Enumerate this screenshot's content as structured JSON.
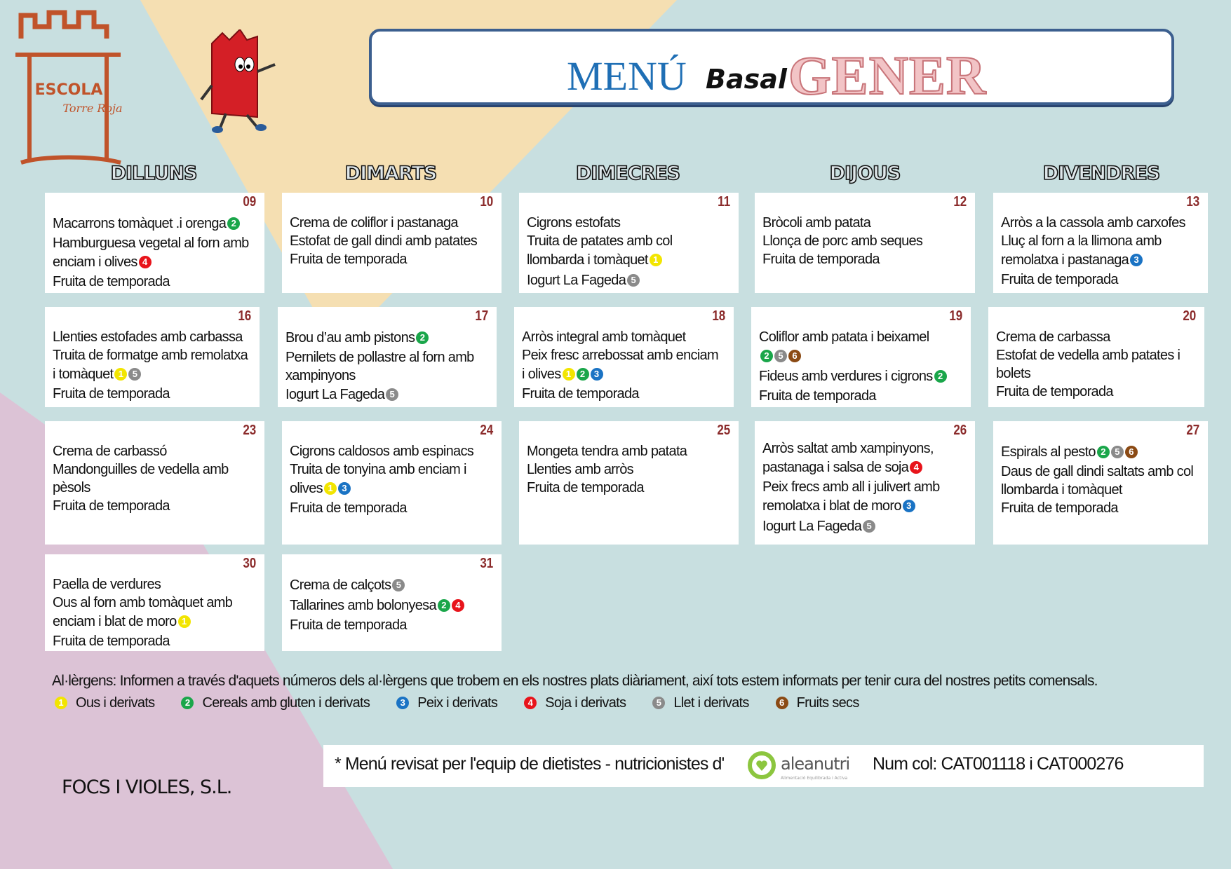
{
  "logo": {
    "school": "ESCOLA",
    "subtitle": "Torre Roja"
  },
  "title": {
    "menu": "MENÚ",
    "type": "Basal",
    "month": "GENER"
  },
  "colors": {
    "allergen": {
      "1": "#f2e500",
      "2": "#1aa64a",
      "3": "#1a73c4",
      "4": "#e8141b",
      "5": "#8a8a8a",
      "6": "#8b4a14"
    }
  },
  "weekdays": [
    "DILLUNS",
    "DIMARTS",
    "DIMECRES",
    "DIJOUS",
    "DIVENDRES"
  ],
  "weeks": [
    [
      {
        "day": "09",
        "lines": [
          {
            "text": "Macarrons tomàquet .i orenga",
            "allergens": [
              2
            ]
          },
          {
            "text": "Hamburguesa vegetal al forn  amb",
            "allergens": []
          },
          {
            "text": "enciam i olives",
            "allergens": [
              4
            ]
          },
          {
            "text": "Fruita de temporada",
            "allergens": []
          }
        ]
      },
      {
        "day": "10",
        "lines": [
          {
            "text": "Crema de coliflor i pastanaga",
            "allergens": []
          },
          {
            "text": "Estofat de gall dindi amb patates",
            "allergens": []
          },
          {
            "text": "Fruita de temporada",
            "allergens": []
          }
        ]
      },
      {
        "day": "11",
        "lines": [
          {
            "text": "Cigrons estofats",
            "allergens": []
          },
          {
            "text": "Truita de patates amb col",
            "allergens": []
          },
          {
            "text": "llombarda i tomàquet",
            "allergens": [
              1
            ]
          },
          {
            "text": "Iogurt La Fageda",
            "allergens": [
              5
            ]
          }
        ]
      },
      {
        "day": "12",
        "lines": [
          {
            "text": "Bròcoli amb patata",
            "allergens": []
          },
          {
            "text": "Llonça de porc amb seques",
            "allergens": []
          },
          {
            "text": "Fruita de temporada",
            "allergens": []
          }
        ]
      },
      {
        "day": "13",
        "lines": [
          {
            "text": "Arròs a la cassola amb carxofes",
            "allergens": []
          },
          {
            "text": "Lluç al forn a la llimona amb",
            "allergens": []
          },
          {
            "text": "remolatxa i pastanaga",
            "allergens": [
              3
            ]
          },
          {
            "text": "Fruita de temporada",
            "allergens": []
          }
        ]
      }
    ],
    [
      {
        "day": "16",
        "lines": [
          {
            "text": "Llenties estofades amb carbassa",
            "allergens": []
          },
          {
            "text": "Truita de formatge amb remolatxa",
            "allergens": []
          },
          {
            "text": "i tomàquet",
            "allergens": [
              1,
              5
            ]
          },
          {
            "text": "Fruita de temporada",
            "allergens": []
          }
        ]
      },
      {
        "day": "17",
        "lines": [
          {
            "text": "Brou d’au amb pistons",
            "allergens": [
              2
            ]
          },
          {
            "text": "Pernilets de pollastre al forn amb",
            "allergens": []
          },
          {
            "text": "xampinyons",
            "allergens": []
          },
          {
            "text": "Iogurt La Fageda",
            "allergens": [
              5
            ]
          }
        ]
      },
      {
        "day": "18",
        "lines": [
          {
            "text": "Arròs integral amb tomàquet",
            "allergens": []
          },
          {
            "text": "Peix fresc arrebossat amb enciam",
            "allergens": []
          },
          {
            "text": "i olives",
            "allergens": [
              1,
              2,
              3
            ]
          },
          {
            "text": "Fruita de temporada",
            "allergens": []
          }
        ]
      },
      {
        "day": "19",
        "lines": [
          {
            "text": "Coliflor amb patata i beixamel",
            "allergens": []
          },
          {
            "text": "",
            "allergens": [
              2,
              5,
              6
            ]
          },
          {
            "text": "Fideus amb verdures i cigrons",
            "allergens": [
              2
            ]
          },
          {
            "text": "Fruita de temporada",
            "allergens": []
          }
        ]
      },
      {
        "day": "20",
        "lines": [
          {
            "text": "Crema de carbassa",
            "allergens": []
          },
          {
            "text": "Estofat de vedella amb patates i",
            "allergens": []
          },
          {
            "text": "bolets",
            "allergens": []
          },
          {
            "text": "Fruita de temporada",
            "allergens": []
          }
        ]
      }
    ],
    [
      {
        "day": "23",
        "lines": [
          {
            "text": "Crema de carbassó",
            "allergens": []
          },
          {
            "text": "Mandonguilles de vedella amb",
            "allergens": []
          },
          {
            "text": "pèsols",
            "allergens": []
          },
          {
            "text": "Fruita de temporada",
            "allergens": []
          }
        ]
      },
      {
        "day": "24",
        "lines": [
          {
            "text": "Cigrons caldosos amb espinacs",
            "allergens": []
          },
          {
            "text": "Truita de tonyina amb enciam i",
            "allergens": []
          },
          {
            "text": "olives",
            "allergens": [
              1,
              3
            ]
          },
          {
            "text": "Fruita de temporada",
            "allergens": []
          }
        ]
      },
      {
        "day": "25",
        "lines": [
          {
            "text": "Mongeta tendra amb patata",
            "allergens": []
          },
          {
            "text": "Llenties amb arròs",
            "allergens": []
          },
          {
            "text": " ",
            "allergens": []
          },
          {
            "text": "Fruita de temporada",
            "allergens": []
          }
        ]
      },
      {
        "day": "26",
        "lines": [
          {
            "text": "Arròs saltat amb xampinyons,",
            "allergens": []
          },
          {
            "text": "pastanaga i salsa de soja",
            "allergens": [
              4
            ]
          },
          {
            "text": "Peix frecs amb all i julivert amb",
            "allergens": []
          },
          {
            "text": "remolatxa i blat de moro",
            "allergens": [
              3
            ]
          },
          {
            "text": "Iogurt La Fageda",
            "allergens": [
              5
            ]
          }
        ]
      },
      {
        "day": "27",
        "lines": [
          {
            "text": "Espirals al pesto",
            "allergens": [
              2,
              5,
              6
            ]
          },
          {
            "text": "Daus de gall dindi saltats amb col",
            "allergens": []
          },
          {
            "text": "llombarda i tomàquet",
            "allergens": []
          },
          {
            "text": "Fruita de temporada",
            "allergens": []
          }
        ]
      }
    ],
    [
      {
        "day": "30",
        "lines": [
          {
            "text": "Paella de verdures",
            "allergens": []
          },
          {
            "text": "Ous al forn amb tomàquet amb",
            "allergens": []
          },
          {
            "text": "enciam i blat de moro",
            "allergens": [
              1
            ]
          },
          {
            "text": "Fruita de temporada",
            "allergens": []
          }
        ]
      },
      {
        "day": "31",
        "lines": [
          {
            "text": "Crema de calçots",
            "allergens": [
              5
            ]
          },
          {
            "text": "Tallarines amb bolonyesa",
            "allergens": [
              2,
              4
            ]
          },
          {
            "text": "Fruita de temporada",
            "allergens": []
          }
        ]
      }
    ]
  ],
  "allergen_note": "Al·lèrgens: Informen a través d'aquets números dels al·lèrgens que trobem en els nostres plats diàriament, així tots estem informats per tenir cura del nostres petits comensals.",
  "legend": [
    {
      "n": 1,
      "label": "Ous i derivats"
    },
    {
      "n": 2,
      "label": "Cereals amb gluten i derivats"
    },
    {
      "n": 3,
      "label": "Peix i derivats"
    },
    {
      "n": 4,
      "label": "Soja i derivats"
    },
    {
      "n": 5,
      "label": "Llet i derivats"
    },
    {
      "n": 6,
      "label": "Fruits secs"
    }
  ],
  "footer": {
    "reviewed": "* Menú revisat per l'equip de dietistes - nutricionistes d'",
    "brand": "aleanutri",
    "brand_tagline": "Alimentació Equilibrada i Activa",
    "collegiate": "Num col: CAT001118 i CAT000276"
  },
  "company": "FOCS I VIOLES, S.L."
}
